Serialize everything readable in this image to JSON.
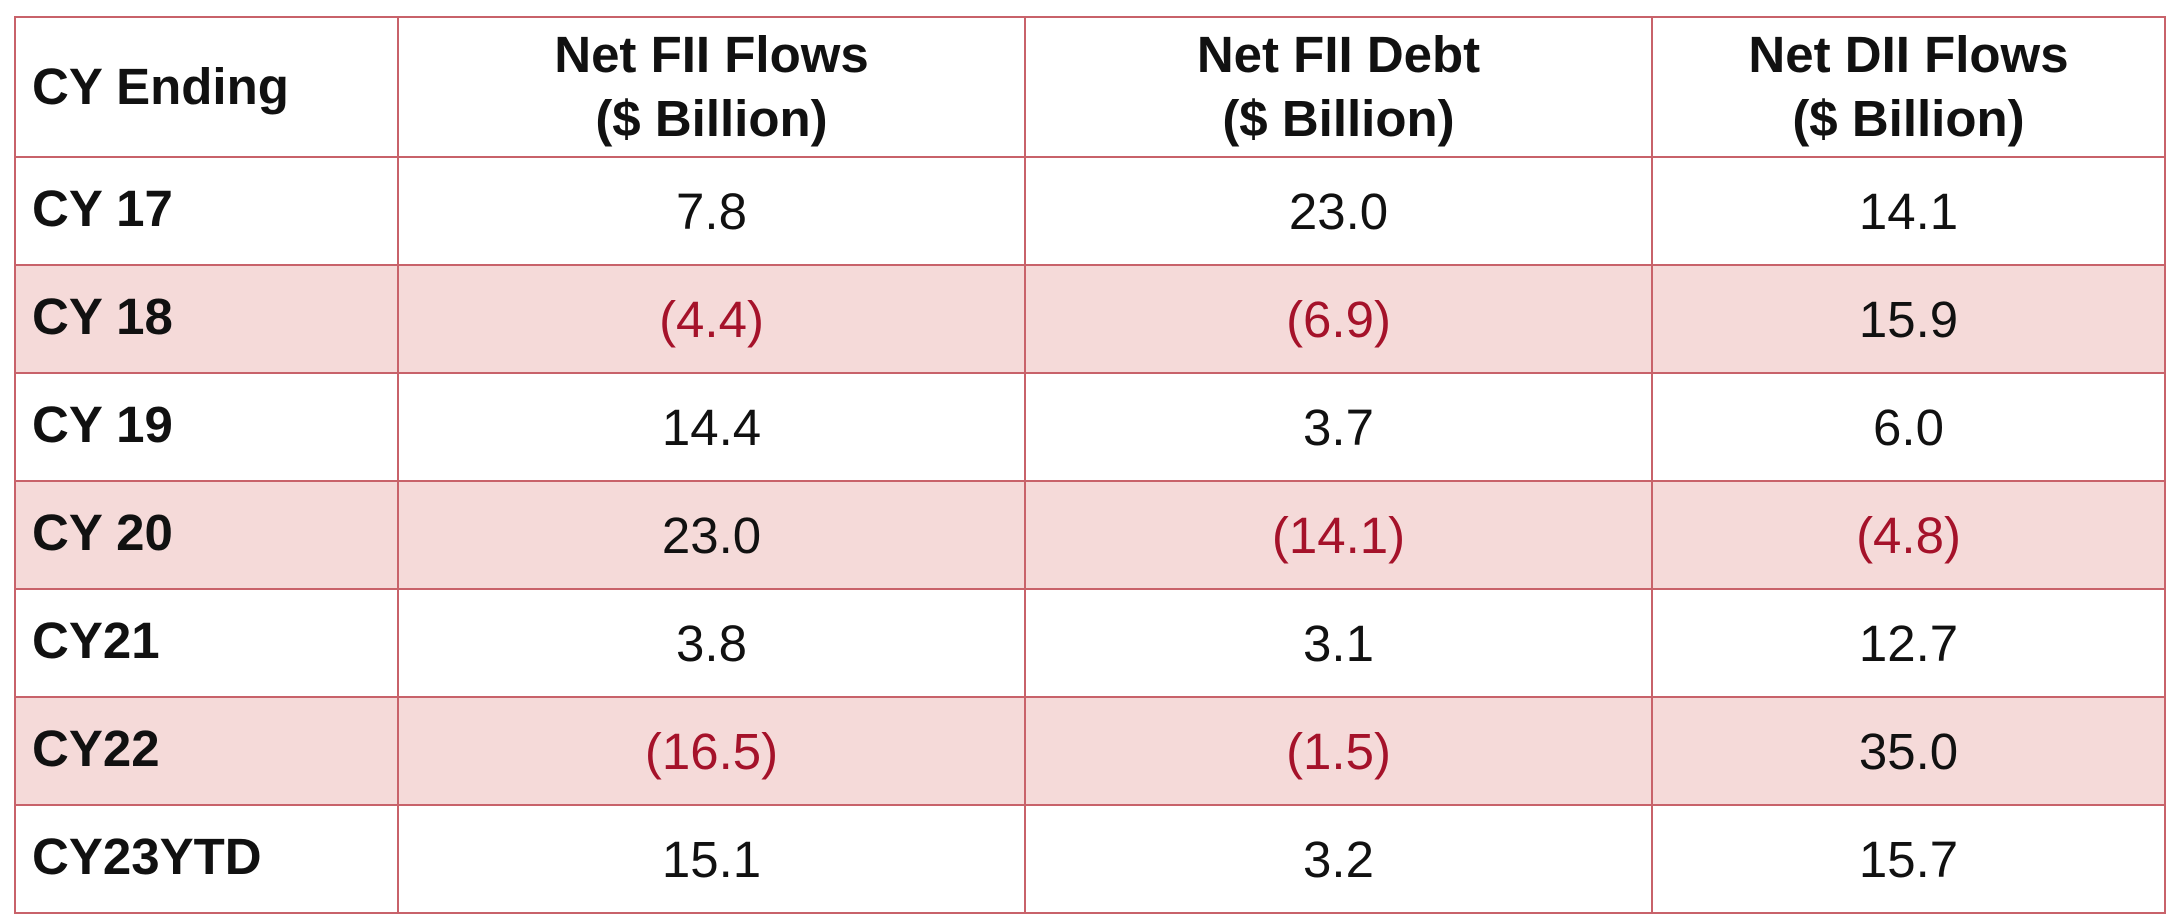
{
  "table": {
    "headers": [
      {
        "line1": "CY Ending",
        "line2": ""
      },
      {
        "line1": "Net FII Flows",
        "line2": "($ Billion)"
      },
      {
        "line1": "Net FII Debt",
        "line2": "($ Billion)"
      },
      {
        "line1": "Net DII Flows",
        "line2": "($ Billion)"
      }
    ],
    "rows": [
      {
        "label": "CY 17",
        "cells": [
          "7.8",
          "23.0",
          "14.1"
        ],
        "negative": [
          false,
          false,
          false
        ],
        "shaded": false
      },
      {
        "label": "CY 18",
        "cells": [
          "(4.4)",
          "(6.9)",
          "15.9"
        ],
        "negative": [
          true,
          true,
          false
        ],
        "shaded": true
      },
      {
        "label": "CY 19",
        "cells": [
          "14.4",
          "3.7",
          "6.0"
        ],
        "negative": [
          false,
          false,
          false
        ],
        "shaded": false
      },
      {
        "label": "CY 20",
        "cells": [
          "23.0",
          "(14.1)",
          "(4.8)"
        ],
        "negative": [
          false,
          true,
          true
        ],
        "shaded": true
      },
      {
        "label": "CY21",
        "cells": [
          "3.8",
          "3.1",
          "12.7"
        ],
        "negative": [
          false,
          false,
          false
        ],
        "shaded": false
      },
      {
        "label": "CY22",
        "cells": [
          "(16.5)",
          "(1.5)",
          "35.0"
        ],
        "negative": [
          true,
          true,
          false
        ],
        "shaded": true
      },
      {
        "label": "CY23YTD",
        "cells": [
          "15.1",
          "3.2",
          "15.7"
        ],
        "negative": [
          false,
          false,
          false
        ],
        "shaded": false
      }
    ]
  },
  "colors": {
    "border": "#c8626a",
    "shaded_row": "#f5dad9",
    "negative_text": "#a5122a",
    "text": "#111111"
  }
}
